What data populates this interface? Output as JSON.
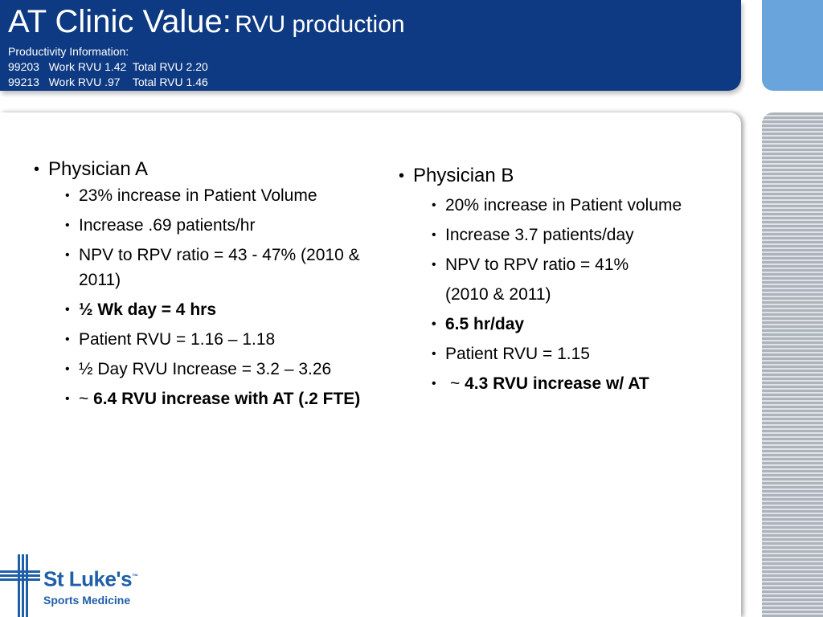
{
  "header": {
    "title_main": "AT Clinic Value:",
    "title_sub": "RVU production",
    "info_lines": [
      "Productivity Information:",
      "99203   Work RVU 1.42  Total RVU 2.20",
      "99213   Work RVU .97    Total RVU 1.46"
    ]
  },
  "physician_a": {
    "label": "Physician A",
    "items": [
      "23% increase in Patient Volume",
      "Increase .69 patients/hr",
      "NPV to RPV ratio = 43 - 47% (2010 & 2011)",
      "½ Wk day = 4 hrs",
      "Patient RVU = 1.16 – 1.18",
      "½ Day RVU Increase = 3.2 – 3.26",
      "~ 6.4 RVU increase with AT (.2 FTE)"
    ],
    "item7_tilde": "~",
    "item7_bold": "6.4 RVU increase with AT (.2 FTE)"
  },
  "physician_b": {
    "label": "Physician B",
    "items": [
      "20% increase in Patient volume",
      "Increase 3.7 patients/day",
      "NPV to RPV ratio = 41%",
      "(2010 & 2011)",
      "6.5 hr/day",
      "Patient RVU = 1.15",
      "~ 4.3 RVU increase w/ AT"
    ],
    "item7_tilde": "~",
    "item7_bold": "4.3 RVU increase w/ AT"
  },
  "logo": {
    "name": "St Luke's",
    "sub": "Sports Medicine",
    "tm": "™"
  },
  "colors": {
    "header_bg": "#0d3a82",
    "side_top": "#6aa4dc",
    "logo_blue": "#1f5fa8"
  }
}
